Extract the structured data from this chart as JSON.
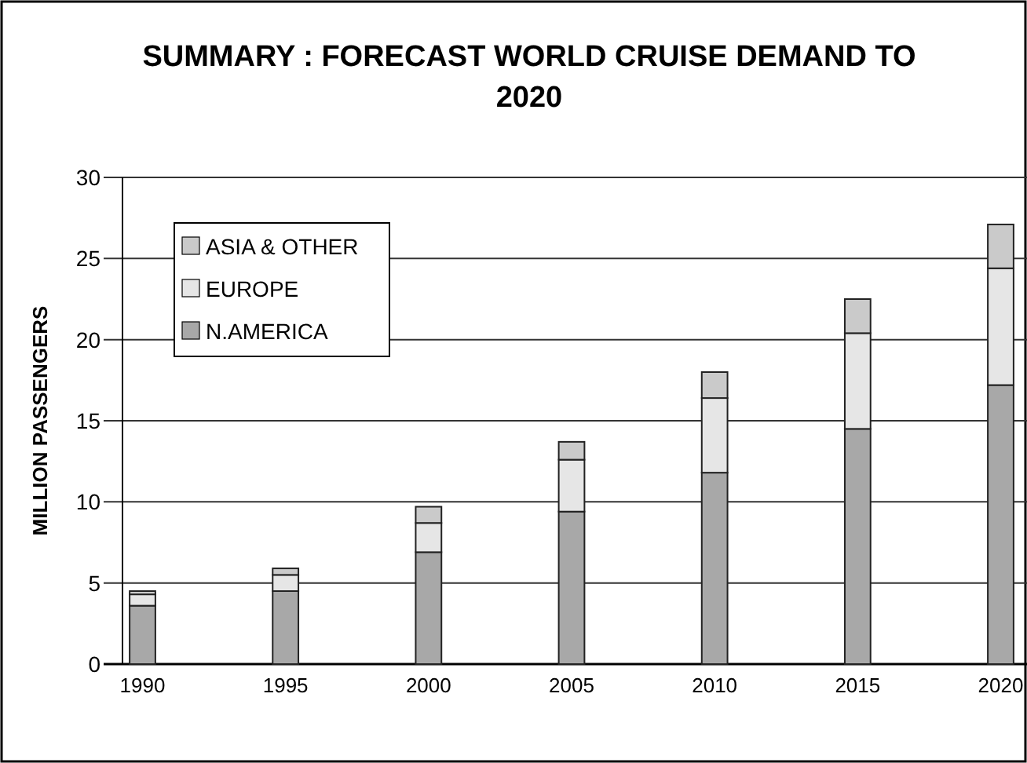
{
  "chart_data": {
    "type": "bar",
    "title": "SUMMARY : FORECAST WORLD CRUISE DEMAND TO 2020",
    "ylabel": "MILLION PASSENGERS",
    "categories": [
      "1990",
      "1995",
      "2000",
      "2005",
      "2010",
      "2015",
      "2020"
    ],
    "stacked": true,
    "series": [
      {
        "name": "N.AMERICA",
        "color": "#a8a8a8",
        "values": [
          3.6,
          4.5,
          6.9,
          9.4,
          11.8,
          14.5,
          17.2
        ]
      },
      {
        "name": "EUROPE",
        "color": "#e6e6e6",
        "values": [
          0.7,
          1.0,
          1.8,
          3.2,
          4.6,
          5.9,
          7.2
        ]
      },
      {
        "name": "ASIA & OTHER",
        "color": "#cacaca",
        "values": [
          0.2,
          0.4,
          1.0,
          1.1,
          1.6,
          2.1,
          2.7
        ]
      }
    ],
    "ylim": [
      0,
      30
    ],
    "yticks": [
      0,
      5,
      10,
      15,
      20,
      25,
      30
    ],
    "grid": "y",
    "legend": "top left"
  }
}
